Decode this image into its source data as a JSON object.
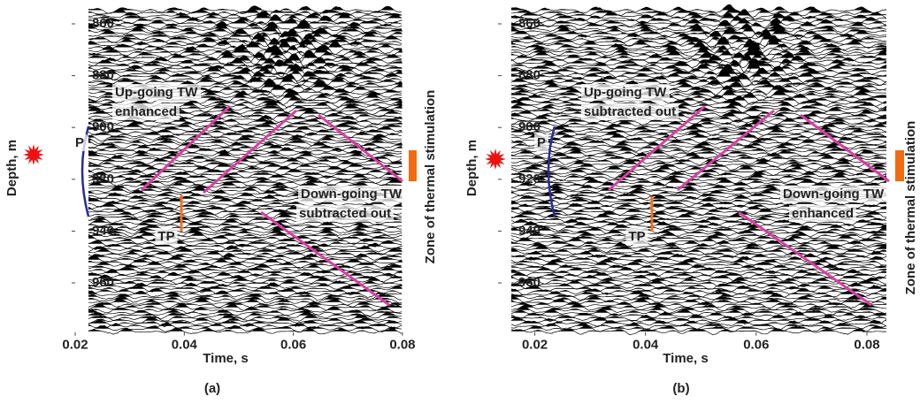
{
  "chart_data": [
    {
      "type": "wiggle",
      "xlabel": "Time, s",
      "ylabel": "Depth, m",
      "caption": "(a)",
      "xlim": [
        0.02,
        0.0805
      ],
      "xticks": [
        0.02,
        0.04,
        0.06,
        0.08
      ],
      "ylim": [
        854,
        979
      ],
      "yticks": [
        860,
        880,
        900,
        920,
        940,
        960
      ],
      "y_inverted": true,
      "side_label": "Zone of  thermal stimulation",
      "annotations": [
        "Up-going TW",
        "enhanced",
        "Down-going TW",
        "subtracted out",
        "P",
        "TP"
      ]
    },
    {
      "type": "wiggle",
      "xlabel": "Time, s",
      "ylabel": "Depth, m",
      "caption": "(b)",
      "xlim": [
        0.014,
        0.084
      ],
      "xticks": [
        0.02,
        0.04,
        0.06,
        0.08
      ],
      "ylim": [
        854,
        979
      ],
      "yticks": [
        860,
        880,
        900,
        920,
        940,
        960
      ],
      "y_inverted": true,
      "side_label": "Zone of  thermal stimulation",
      "annotations": [
        "Up-going TW",
        "subtracted out",
        "Down-going TW",
        "enhanced",
        "P",
        "TP"
      ]
    }
  ]
}
